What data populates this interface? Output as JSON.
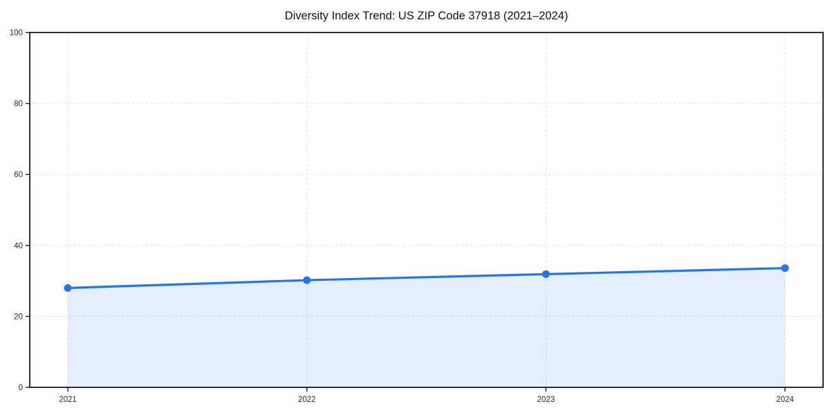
{
  "chart_data": {
    "type": "area",
    "title": "Diversity Index Trend: US ZIP Code 37918 (2021–2024)",
    "categories": [
      "2021",
      "2022",
      "2023",
      "2024"
    ],
    "values": [
      28.0,
      30.2,
      31.9,
      33.6
    ],
    "series_name": "Diversity Index",
    "xlabel": "",
    "ylabel": "",
    "ylim": [
      0,
      100
    ],
    "yticks": [
      0,
      20,
      40,
      60,
      80,
      100
    ],
    "grid": "dashed, both axes",
    "legend": "none",
    "colors": {
      "line": "#2575e6",
      "marker": "#2575e6",
      "fill": "#2575e6",
      "fill_opacity": 0.12,
      "gridline": "#e4e4e4",
      "spine": "#1a1a1a",
      "tick_text": "#2b2b2b",
      "title_text": "#111111",
      "background": "#ffffff"
    }
  }
}
